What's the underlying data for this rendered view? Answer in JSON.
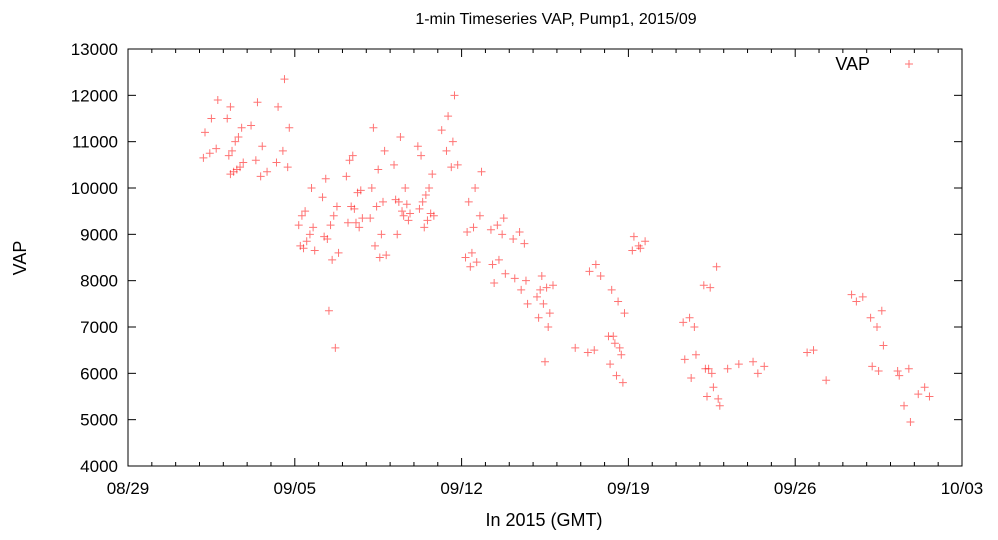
{
  "chart_data": {
    "type": "scatter",
    "title": "1-min Timeseries VAP, Pump1, 2015/09",
    "xlabel": "In 2015 (GMT)",
    "ylabel": "VAP",
    "x_type": "date",
    "xlim": [
      "2015-08-29",
      "2015-10-03"
    ],
    "x_ticks": [
      "08/29",
      "09/05",
      "09/12",
      "09/19",
      "09/26",
      "10/03"
    ],
    "x_tick_dates": [
      "2015-08-29",
      "2015-09-05",
      "2015-09-12",
      "2015-09-19",
      "2015-09-26",
      "2015-10-03"
    ],
    "ylim": [
      4000,
      13000
    ],
    "y_ticks": [
      4000,
      5000,
      6000,
      7000,
      8000,
      9000,
      10000,
      11000,
      12000,
      13000
    ],
    "y_tick_labels": [
      "4000",
      "5000",
      "6000",
      "7000",
      "8000",
      "9000",
      "10000",
      "11000",
      "12000",
      "13000"
    ],
    "grid": false,
    "legend_position": "top-right",
    "series": [
      {
        "name": "VAP",
        "color": "#ff0000",
        "marker": "plus",
        "points": [
          [
            "2015-09-01",
            10650
          ],
          [
            "2015-09-01",
            10750
          ],
          [
            "2015-09-01",
            10850
          ],
          [
            "2015-09-01",
            11200
          ],
          [
            "2015-09-01",
            11500
          ],
          [
            "2015-09-01",
            11900
          ],
          [
            "2015-09-02",
            10300
          ],
          [
            "2015-09-02",
            10400
          ],
          [
            "2015-09-02",
            10550
          ],
          [
            "2015-09-02",
            10800
          ],
          [
            "2015-09-02",
            11100
          ],
          [
            "2015-09-02",
            11500
          ],
          [
            "2015-09-02",
            10350
          ],
          [
            "2015-09-02",
            10450
          ],
          [
            "2015-09-02",
            10700
          ],
          [
            "2015-09-02",
            11000
          ],
          [
            "2015-09-02",
            11300
          ],
          [
            "2015-09-02",
            11750
          ],
          [
            "2015-09-03",
            10250
          ],
          [
            "2015-09-03",
            10350
          ],
          [
            "2015-09-03",
            10600
          ],
          [
            "2015-09-03",
            10900
          ],
          [
            "2015-09-03",
            11350
          ],
          [
            "2015-09-03",
            11850
          ],
          [
            "2015-09-04",
            10450
          ],
          [
            "2015-09-04",
            10550
          ],
          [
            "2015-09-04",
            10800
          ],
          [
            "2015-09-04",
            11300
          ],
          [
            "2015-09-04",
            11750
          ],
          [
            "2015-09-04",
            12350
          ],
          [
            "2015-09-05",
            8650
          ],
          [
            "2015-09-05",
            8700
          ],
          [
            "2015-09-05",
            9000
          ],
          [
            "2015-09-05",
            9200
          ],
          [
            "2015-09-05",
            9500
          ],
          [
            "2015-09-05",
            10000
          ],
          [
            "2015-09-05",
            8750
          ],
          [
            "2015-09-05",
            8850
          ],
          [
            "2015-09-05",
            9150
          ],
          [
            "2015-09-05",
            9400
          ],
          [
            "2015-09-06",
            8450
          ],
          [
            "2015-09-06",
            8600
          ],
          [
            "2015-09-06",
            8900
          ],
          [
            "2015-09-06",
            9400
          ],
          [
            "2015-09-06",
            9800
          ],
          [
            "2015-09-06",
            7350
          ],
          [
            "2015-09-06",
            6550
          ],
          [
            "2015-09-06",
            8950
          ],
          [
            "2015-09-06",
            9200
          ],
          [
            "2015-09-06",
            9600
          ],
          [
            "2015-09-06",
            10200
          ],
          [
            "2015-09-07",
            9250
          ],
          [
            "2015-09-07",
            9350
          ],
          [
            "2015-09-07",
            9600
          ],
          [
            "2015-09-07",
            9900
          ],
          [
            "2015-09-07",
            10250
          ],
          [
            "2015-09-07",
            10700
          ],
          [
            "2015-09-07",
            9150
          ],
          [
            "2015-09-07",
            9250
          ],
          [
            "2015-09-07",
            9550
          ],
          [
            "2015-09-07",
            9950
          ],
          [
            "2015-09-07",
            10600
          ],
          [
            "2015-09-08",
            8500
          ],
          [
            "2015-09-08",
            8550
          ],
          [
            "2015-09-08",
            8750
          ],
          [
            "2015-09-08",
            9000
          ],
          [
            "2015-09-08",
            9350
          ],
          [
            "2015-09-08",
            9600
          ],
          [
            "2015-09-08",
            9700
          ],
          [
            "2015-09-08",
            10000
          ],
          [
            "2015-09-08",
            10400
          ],
          [
            "2015-09-08",
            10800
          ],
          [
            "2015-09-08",
            11300
          ],
          [
            "2015-09-09",
            9400
          ],
          [
            "2015-09-09",
            9450
          ],
          [
            "2015-09-09",
            9700
          ],
          [
            "2015-09-09",
            10000
          ],
          [
            "2015-09-09",
            10500
          ],
          [
            "2015-09-09",
            11100
          ],
          [
            "2015-09-09",
            9650
          ],
          [
            "2015-09-09",
            9750
          ],
          [
            "2015-09-09",
            9500
          ],
          [
            "2015-09-09",
            9300
          ],
          [
            "2015-09-09",
            9000
          ],
          [
            "2015-09-10",
            9300
          ],
          [
            "2015-09-10",
            9400
          ],
          [
            "2015-09-10",
            9700
          ],
          [
            "2015-09-10",
            10000
          ],
          [
            "2015-09-10",
            10900
          ],
          [
            "2015-09-10",
            9150
          ],
          [
            "2015-09-10",
            9450
          ],
          [
            "2015-09-10",
            9550
          ],
          [
            "2015-09-10",
            9850
          ],
          [
            "2015-09-10",
            10300
          ],
          [
            "2015-09-10",
            10700
          ],
          [
            "2015-09-11",
            10450
          ],
          [
            "2015-09-11",
            10500
          ],
          [
            "2015-09-11",
            10800
          ],
          [
            "2015-09-11",
            11000
          ],
          [
            "2015-09-11",
            11250
          ],
          [
            "2015-09-11",
            11550
          ],
          [
            "2015-09-11",
            12000
          ],
          [
            "2015-09-12",
            9050
          ],
          [
            "2015-09-12",
            9150
          ],
          [
            "2015-09-12",
            9400
          ],
          [
            "2015-09-12",
            9700
          ],
          [
            "2015-09-12",
            10000
          ],
          [
            "2015-09-12",
            10350
          ],
          [
            "2015-09-12",
            8300
          ],
          [
            "2015-09-12",
            8400
          ],
          [
            "2015-09-12",
            8500
          ],
          [
            "2015-09-12",
            8600
          ],
          [
            "2015-09-13",
            9000
          ],
          [
            "2015-09-13",
            9100
          ],
          [
            "2015-09-13",
            9200
          ],
          [
            "2015-09-13",
            9350
          ],
          [
            "2015-09-13",
            8350
          ],
          [
            "2015-09-13",
            8450
          ],
          [
            "2015-09-13",
            8150
          ],
          [
            "2015-09-13",
            7950
          ],
          [
            "2015-09-14",
            8800
          ],
          [
            "2015-09-14",
            8900
          ],
          [
            "2015-09-14",
            9050
          ],
          [
            "2015-09-14",
            8000
          ],
          [
            "2015-09-14",
            8050
          ],
          [
            "2015-09-14",
            7800
          ],
          [
            "2015-09-14",
            7500
          ],
          [
            "2015-09-15",
            7800
          ],
          [
            "2015-09-15",
            7850
          ],
          [
            "2015-09-15",
            7900
          ],
          [
            "2015-09-15",
            8100
          ],
          [
            "2015-09-15",
            7000
          ],
          [
            "2015-09-15",
            7650
          ],
          [
            "2015-09-15",
            7500
          ],
          [
            "2015-09-15",
            7300
          ],
          [
            "2015-09-15",
            7200
          ],
          [
            "2015-09-15",
            6250
          ],
          [
            "2015-09-16",
            6550
          ],
          [
            "2015-09-17",
            6450
          ],
          [
            "2015-09-17",
            6500
          ],
          [
            "2015-09-17",
            8100
          ],
          [
            "2015-09-17",
            8200
          ],
          [
            "2015-09-17",
            8350
          ],
          [
            "2015-09-18",
            6800
          ],
          [
            "2015-09-18",
            6650
          ],
          [
            "2015-09-18",
            6400
          ],
          [
            "2015-09-18",
            6200
          ],
          [
            "2015-09-18",
            5950
          ],
          [
            "2015-09-18",
            5800
          ],
          [
            "2015-09-18",
            7800
          ],
          [
            "2015-09-18",
            7550
          ],
          [
            "2015-09-18",
            7300
          ],
          [
            "2015-09-18",
            6800
          ],
          [
            "2015-09-18",
            6550
          ],
          [
            "2015-09-19",
            8650
          ],
          [
            "2015-09-19",
            8750
          ],
          [
            "2015-09-19",
            8850
          ],
          [
            "2015-09-19",
            8950
          ],
          [
            "2015-09-19",
            8700
          ],
          [
            "2015-09-21",
            7000
          ],
          [
            "2015-09-21",
            7100
          ],
          [
            "2015-09-21",
            7200
          ],
          [
            "2015-09-21",
            6400
          ],
          [
            "2015-09-21",
            6300
          ],
          [
            "2015-09-21",
            5900
          ],
          [
            "2015-09-22",
            7900
          ],
          [
            "2015-09-22",
            7850
          ],
          [
            "2015-09-22",
            8300
          ],
          [
            "2015-09-22",
            6100
          ],
          [
            "2015-09-22",
            6000
          ],
          [
            "2015-09-22",
            5450
          ],
          [
            "2015-09-22",
            5500
          ],
          [
            "2015-09-22",
            5700
          ],
          [
            "2015-09-22",
            5300
          ],
          [
            "2015-09-22",
            6100
          ],
          [
            "2015-09-23",
            6200
          ],
          [
            "2015-09-23",
            6100
          ],
          [
            "2015-09-24",
            6000
          ],
          [
            "2015-09-24",
            6150
          ],
          [
            "2015-09-24",
            6250
          ],
          [
            "2015-09-26",
            6450
          ],
          [
            "2015-09-26",
            6500
          ],
          [
            "2015-09-27",
            5850
          ],
          [
            "2015-09-28",
            7550
          ],
          [
            "2015-09-28",
            7650
          ],
          [
            "2015-09-28",
            7700
          ],
          [
            "2015-09-29",
            7350
          ],
          [
            "2015-09-29",
            7200
          ],
          [
            "2015-09-29",
            7000
          ],
          [
            "2015-09-29",
            6600
          ],
          [
            "2015-09-29",
            6150
          ],
          [
            "2015-09-29",
            6050
          ],
          [
            "2015-09-30",
            6100
          ],
          [
            "2015-09-30",
            6050
          ],
          [
            "2015-09-30",
            5300
          ],
          [
            "2015-09-30",
            4950
          ],
          [
            "2015-09-30",
            5950
          ],
          [
            "2015-10-01",
            5500
          ],
          [
            "2015-10-01",
            5550
          ],
          [
            "2015-10-01",
            5700
          ]
        ]
      }
    ]
  }
}
